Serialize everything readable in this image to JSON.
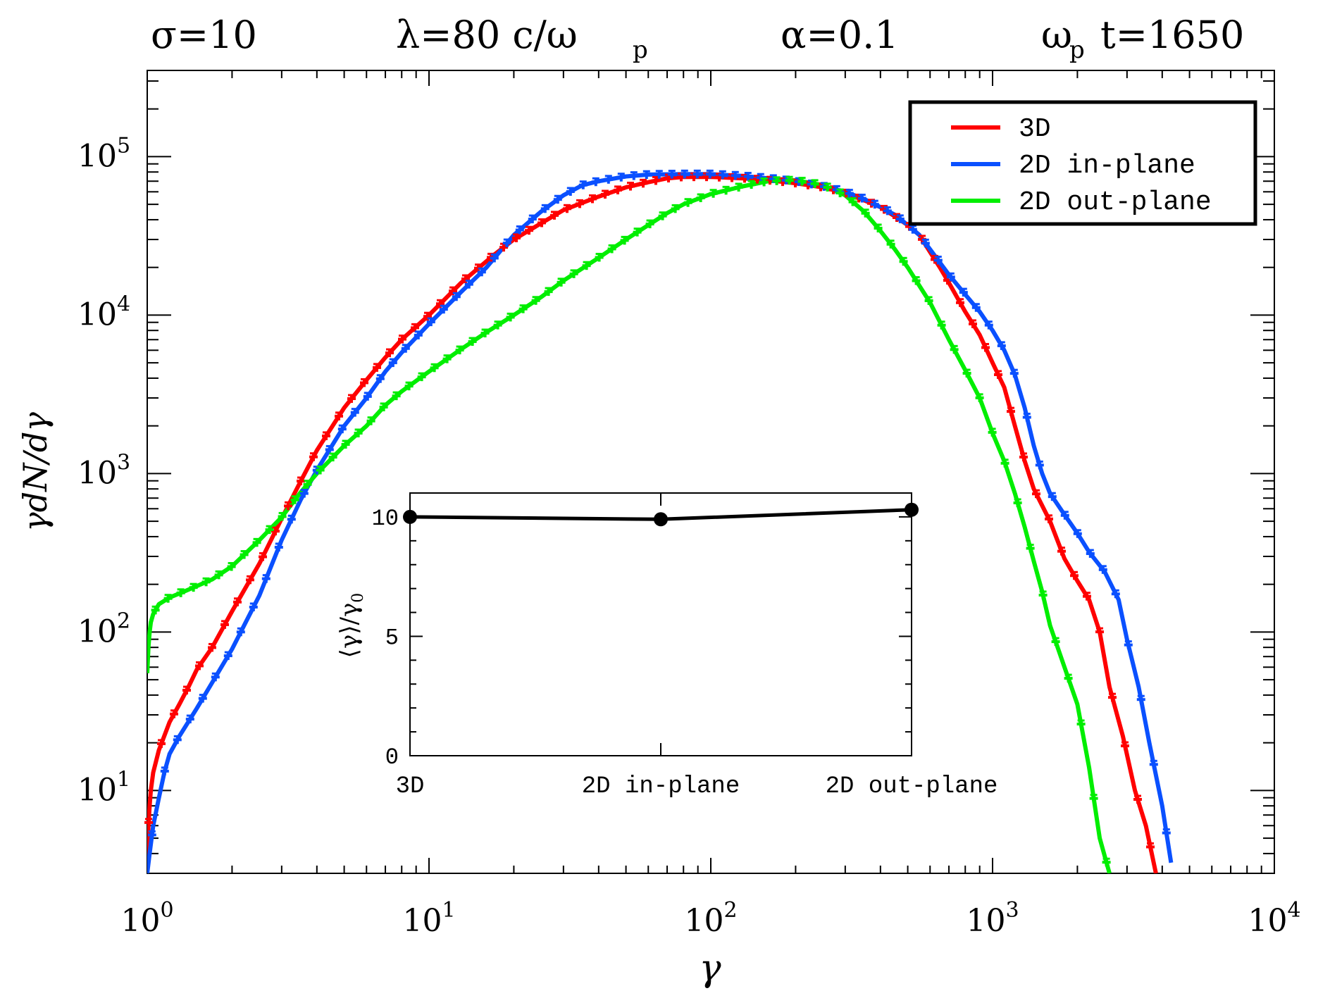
{
  "chart_data": [
    {
      "type": "line",
      "title_parts": [
        "σ=10",
        "λ=80  c/ω",
        "p",
        "α=0.1",
        "ω",
        "p",
        "t=1650"
      ],
      "xlabel": "γ",
      "ylabel": "γdN/dγ",
      "xscale": "log",
      "yscale": "log",
      "xlim": [
        1,
        10000
      ],
      "ylim": [
        3,
        350000
      ],
      "x_ticks": [
        {
          "base": "10",
          "exp": "0",
          "value": 1
        },
        {
          "base": "10",
          "exp": "1",
          "value": 10
        },
        {
          "base": "10",
          "exp": "2",
          "value": 100
        },
        {
          "base": "10",
          "exp": "3",
          "value": 1000
        },
        {
          "base": "10",
          "exp": "4",
          "value": 10000
        }
      ],
      "y_ticks": [
        {
          "base": "10",
          "exp": "1",
          "value": 10
        },
        {
          "base": "10",
          "exp": "2",
          "value": 100
        },
        {
          "base": "10",
          "exp": "3",
          "value": 1000
        },
        {
          "base": "10",
          "exp": "4",
          "value": 10000
        },
        {
          "base": "10",
          "exp": "5",
          "value": 100000
        }
      ],
      "legend": {
        "placement": "top-right"
      },
      "series": [
        {
          "name": "3D",
          "color": "#ff0000",
          "points": [
            [
              1.0,
              3
            ],
            [
              1.01,
              6
            ],
            [
              1.02,
              8
            ],
            [
              1.03,
              10
            ],
            [
              1.05,
              13
            ],
            [
              1.1,
              18
            ],
            [
              1.2,
              27
            ],
            [
              1.3,
              35
            ],
            [
              1.4,
              45
            ],
            [
              1.5,
              58
            ],
            [
              1.7,
              80
            ],
            [
              2.0,
              135
            ],
            [
              2.5,
              270
            ],
            [
              3.0,
              520
            ],
            [
              3.5,
              890
            ],
            [
              4,
              1400
            ],
            [
              5,
              2600
            ],
            [
              6,
              3900
            ],
            [
              7,
              5400
            ],
            [
              8,
              7000
            ],
            [
              10,
              10000
            ],
            [
              13,
              16000
            ],
            [
              17,
              24000
            ],
            [
              20,
              30000
            ],
            [
              25,
              38000
            ],
            [
              30,
              46000
            ],
            [
              40,
              56000
            ],
            [
              50,
              64000
            ],
            [
              60,
              69000
            ],
            [
              70,
              73000
            ],
            [
              80,
              74500
            ],
            [
              100,
              74500
            ],
            [
              130,
              73000
            ],
            [
              160,
              71000
            ],
            [
              200,
              68000
            ],
            [
              250,
              64000
            ],
            [
              300,
              59000
            ],
            [
              350,
              53000
            ],
            [
              400,
              48000
            ],
            [
              450,
              42000
            ],
            [
              500,
              37000
            ],
            [
              550,
              32000
            ],
            [
              600,
              25000
            ],
            [
              650,
              20000
            ],
            [
              700,
              16000
            ],
            [
              800,
              10500
            ],
            [
              900,
              7500
            ],
            [
              1000,
              5000
            ],
            [
              1100,
              3500
            ],
            [
              1200,
              2000
            ],
            [
              1300,
              1200
            ],
            [
              1400,
              800
            ],
            [
              1600,
              500
            ],
            [
              1800,
              290
            ],
            [
              2000,
              210
            ],
            [
              2200,
              160
            ],
            [
              2400,
              100
            ],
            [
              2600,
              45
            ],
            [
              2900,
              22
            ],
            [
              3200,
              10
            ],
            [
              3500,
              6
            ],
            [
              3800,
              3
            ]
          ]
        },
        {
          "name": "2D in-plane",
          "color": "#0a50ff",
          "points": [
            [
              1.0,
              3
            ],
            [
              1.02,
              4
            ],
            [
              1.05,
              6
            ],
            [
              1.1,
              9
            ],
            [
              1.15,
              13
            ],
            [
              1.2,
              17
            ],
            [
              1.3,
              22
            ],
            [
              1.5,
              33
            ],
            [
              1.7,
              48
            ],
            [
              2.0,
              78
            ],
            [
              2.5,
              170
            ],
            [
              3.0,
              380
            ],
            [
              3.5,
              680
            ],
            [
              4,
              1050
            ],
            [
              5,
              2000
            ],
            [
              6,
              3000
            ],
            [
              7,
              4400
            ],
            [
              8,
              5800
            ],
            [
              10,
              8800
            ],
            [
              13,
              14000
            ],
            [
              16,
              20000
            ],
            [
              20,
              32000
            ],
            [
              25,
              45000
            ],
            [
              30,
              57000
            ],
            [
              35,
              66000
            ],
            [
              40,
              70000
            ],
            [
              50,
              75000
            ],
            [
              60,
              77000
            ],
            [
              80,
              77500
            ],
            [
              100,
              77500
            ],
            [
              130,
              75500
            ],
            [
              160,
              73000
            ],
            [
              200,
              70000
            ],
            [
              250,
              65000
            ],
            [
              300,
              60000
            ],
            [
              350,
              54000
            ],
            [
              400,
              48000
            ],
            [
              450,
              43000
            ],
            [
              500,
              37000
            ],
            [
              550,
              32000
            ],
            [
              600,
              26000
            ],
            [
              700,
              18000
            ],
            [
              800,
              13500
            ],
            [
              900,
              10500
            ],
            [
              1000,
              8000
            ],
            [
              1100,
              6000
            ],
            [
              1200,
              4200
            ],
            [
              1300,
              2600
            ],
            [
              1400,
              1500
            ],
            [
              1500,
              1000
            ],
            [
              1600,
              750
            ],
            [
              1800,
              550
            ],
            [
              2000,
              420
            ],
            [
              2200,
              320
            ],
            [
              2500,
              240
            ],
            [
              2800,
              160
            ],
            [
              3000,
              90
            ],
            [
              3300,
              45
            ],
            [
              3600,
              20
            ],
            [
              4000,
              8
            ],
            [
              4300,
              3.5
            ]
          ]
        },
        {
          "name": "2D out-plane",
          "color": "#00ee00",
          "points": [
            [
              1.0,
              55
            ],
            [
              1.01,
              80
            ],
            [
              1.02,
              100
            ],
            [
              1.03,
              115
            ],
            [
              1.05,
              130
            ],
            [
              1.1,
              150
            ],
            [
              1.2,
              165
            ],
            [
              1.3,
              175
            ],
            [
              1.5,
              195
            ],
            [
              1.7,
              215
            ],
            [
              2.0,
              260
            ],
            [
              2.5,
              380
            ],
            [
              3.0,
              530
            ],
            [
              3.5,
              760
            ],
            [
              4,
              1000
            ],
            [
              5,
              1500
            ],
            [
              6,
              2000
            ],
            [
              7,
              2700
            ],
            [
              8,
              3300
            ],
            [
              10,
              4400
            ],
            [
              13,
              6100
            ],
            [
              16,
              7800
            ],
            [
              20,
              10000
            ],
            [
              25,
              13000
            ],
            [
              30,
              16500
            ],
            [
              40,
              23000
            ],
            [
              50,
              30000
            ],
            [
              60,
              37000
            ],
            [
              70,
              44000
            ],
            [
              80,
              50000
            ],
            [
              100,
              58000
            ],
            [
              130,
              65000
            ],
            [
              160,
              70000
            ],
            [
              200,
              71000
            ],
            [
              250,
              66000
            ],
            [
              300,
              57000
            ],
            [
              350,
              45000
            ],
            [
              400,
              34000
            ],
            [
              450,
              26000
            ],
            [
              500,
              20000
            ],
            [
              600,
              12000
            ],
            [
              700,
              7000
            ],
            [
              800,
              4500
            ],
            [
              900,
              3000
            ],
            [
              1000,
              1800
            ],
            [
              1100,
              1200
            ],
            [
              1200,
              750
            ],
            [
              1300,
              460
            ],
            [
              1400,
              280
            ],
            [
              1500,
              180
            ],
            [
              1600,
              110
            ],
            [
              1800,
              60
            ],
            [
              2000,
              35
            ],
            [
              2200,
              14
            ],
            [
              2400,
              5
            ],
            [
              2600,
              3
            ]
          ]
        }
      ]
    },
    {
      "type": "line",
      "title": "",
      "xlabel": "",
      "ylabel": "⟨γ⟩/γ",
      "ylabel_sub": "0",
      "categories": [
        "3D",
        "2D in-plane",
        "2D out-plane"
      ],
      "values": [
        10.0,
        9.9,
        10.3
      ],
      "ylim": [
        0,
        11
      ],
      "y_ticks": [
        0,
        5,
        10
      ],
      "color": "#000000"
    }
  ]
}
